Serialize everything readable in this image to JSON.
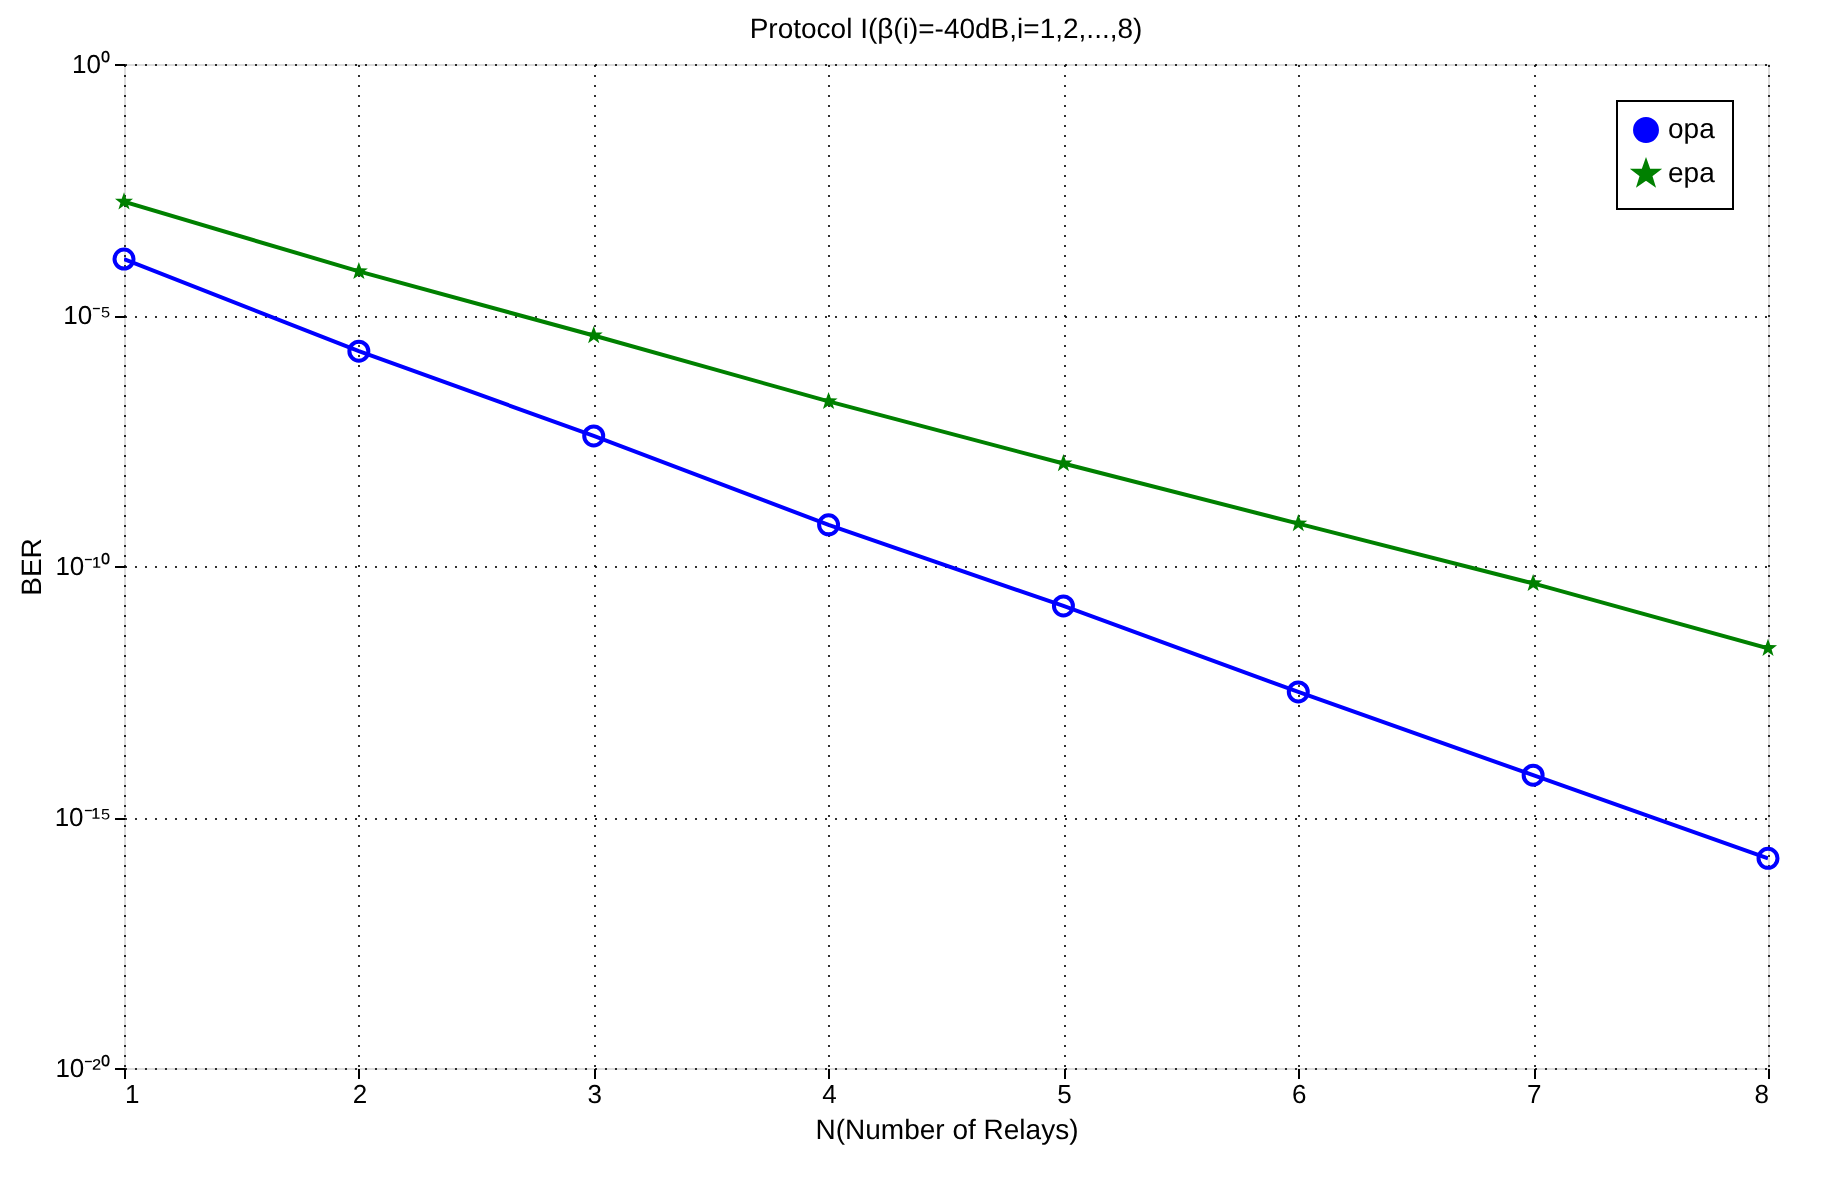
{
  "chart_data": {
    "type": "line",
    "title": "Protocol I(β(i)=-40dB,i=1,2,...,8)",
    "xlabel": "N(Number of Relays)",
    "ylabel": "BER",
    "x": [
      1,
      2,
      3,
      4,
      5,
      6,
      7,
      8
    ],
    "series": [
      {
        "name": "opa",
        "color": "#0000ff",
        "marker": "circle",
        "values": [
          0.00013,
          1.9e-06,
          3.9e-08,
          6.6e-10,
          1.6e-11,
          3.1e-13,
          6.8e-15,
          1.5e-16
        ]
      },
      {
        "name": "epa",
        "color": "#008000",
        "marker": "star",
        "values": [
          0.0018,
          7.4e-05,
          3.9e-06,
          1.9e-07,
          1.1e-08,
          7e-10,
          4.5e-11,
          2.3e-12
        ]
      }
    ],
    "log": "y",
    "xlim": [
      1,
      8
    ],
    "xticks": [
      1,
      2,
      3,
      4,
      5,
      6,
      7,
      8
    ],
    "ylim": [
      1e-20,
      1
    ],
    "yticks": [
      {
        "value": 1e-20,
        "label": "10⁻²⁰"
      },
      {
        "value": 1e-15,
        "label": "10⁻¹⁵"
      },
      {
        "value": 1e-10,
        "label": "10⁻¹⁰"
      },
      {
        "value": 1e-05,
        "label": "10⁻⁵"
      },
      {
        "value": 1,
        "label": "10⁰"
      }
    ],
    "grid": true,
    "legend": "top right",
    "line_style": "solid"
  }
}
